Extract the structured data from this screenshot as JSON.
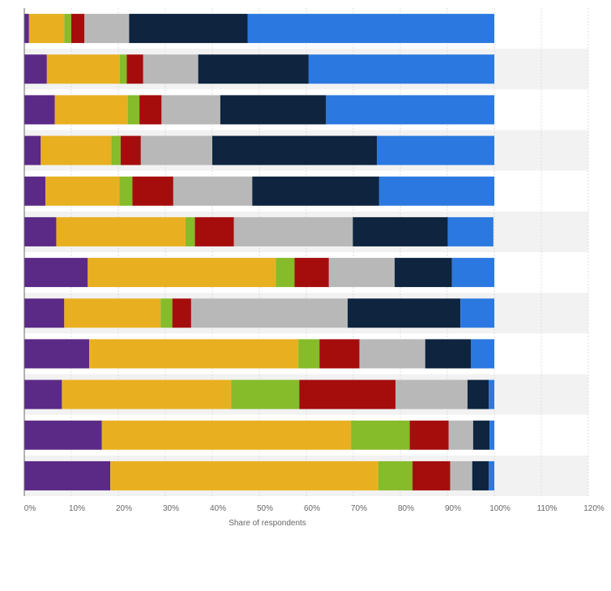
{
  "chart_data": {
    "type": "bar",
    "orientation": "horizontal",
    "stacked": true,
    "title": "",
    "xlabel": "Share of respondents",
    "ylabel": "",
    "xlim": [
      0,
      120
    ],
    "x_ticks": [
      "0%",
      "10%",
      "20%",
      "30%",
      "40%",
      "50%",
      "60%",
      "70%",
      "80%",
      "90%",
      "100%",
      "110%",
      "120%"
    ],
    "grid": true,
    "legend": "none",
    "categories": [
      "",
      "",
      "",
      "",
      "",
      "",
      "",
      "",
      "",
      "",
      "",
      ""
    ],
    "series": [
      {
        "color": "#5b2a86",
        "values": [
          1,
          4.8,
          6.5,
          3.5,
          4.5,
          6.8,
          13.5,
          8.5,
          13.8,
          8,
          16.5,
          18.3
        ]
      },
      {
        "color": "#e8b020",
        "values": [
          7.5,
          15.5,
          15.5,
          15,
          15.7,
          27.5,
          40,
          20.5,
          44.5,
          36,
          53,
          57
        ]
      },
      {
        "color": "#86bb2a",
        "values": [
          1.5,
          1.5,
          2.5,
          2,
          2.8,
          2,
          4,
          2.5,
          4.5,
          14.5,
          12.5,
          7.3
        ]
      },
      {
        "color": "#a50d0d",
        "values": [
          2.8,
          3.5,
          4.7,
          4.3,
          8.7,
          8.3,
          7.3,
          4,
          8.5,
          20.5,
          8.3,
          8
        ]
      },
      {
        "color": "#b8b8b8",
        "values": [
          9.5,
          11.7,
          12.5,
          15.2,
          16.8,
          25.3,
          14,
          33.3,
          14,
          15.3,
          5.2,
          4.7
        ]
      },
      {
        "color": "#0e243f",
        "values": [
          25.2,
          23.5,
          22.5,
          35,
          27,
          20.2,
          12.2,
          24,
          9.7,
          4.5,
          3.5,
          3.5
        ]
      },
      {
        "color": "#2b79e0",
        "values": [
          52.5,
          39.5,
          35.8,
          25,
          24.5,
          9.7,
          9,
          7.2,
          5,
          1.2,
          1,
          1.2
        ]
      }
    ]
  }
}
